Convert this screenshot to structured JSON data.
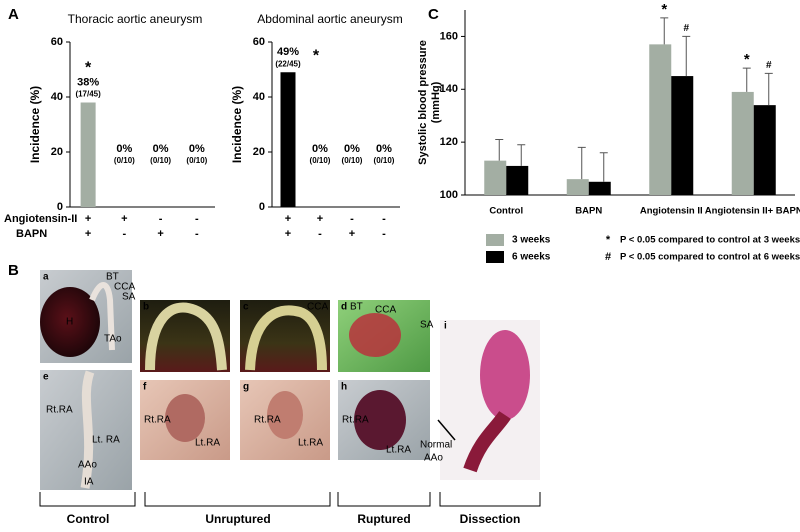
{
  "panel_labels": [
    "A",
    "B",
    "C"
  ],
  "chart_data": [
    {
      "type": "bar",
      "title": "Thoracic aortic aneurysm",
      "ylabel": "Incidence (%)",
      "categories": [
        null,
        null,
        null,
        null
      ],
      "values": [
        38,
        0,
        0,
        0
      ],
      "value_labels": [
        "38%",
        "0%",
        "0%",
        "0%"
      ],
      "counts": [
        "(17/45)",
        "(0/10)",
        "(0/10)",
        "(0/10)"
      ],
      "significance": [
        "*",
        null,
        null,
        null
      ],
      "color": "#a3aea3",
      "ylim": [
        0,
        60
      ],
      "yticks": [
        0,
        20,
        40,
        60
      ]
    },
    {
      "type": "bar",
      "title": "Abdominal aortic aneurysm",
      "ylabel": "Incidence (%)",
      "categories": [
        null,
        null,
        null,
        null
      ],
      "values": [
        49,
        0,
        0,
        0
      ],
      "value_labels": [
        "49%",
        "0%",
        "0%",
        "0%"
      ],
      "counts": [
        "(22/45)",
        "(0/10)",
        "(0/10)",
        "(0/10)"
      ],
      "significance": [
        "*",
        null,
        null,
        null
      ],
      "color": "#000000",
      "ylim": [
        0,
        60
      ],
      "yticks": [
        0,
        20,
        40,
        60
      ]
    },
    {
      "type": "grouped-bar",
      "ylabel": [
        "Systolic blood pressure",
        "(mmHg)"
      ],
      "categories": [
        "Control",
        "BAPN",
        "Angiotensin II",
        "Angiotensin II+ BAPN"
      ],
      "series": [
        {
          "name": "3 weeks",
          "color": "#a3aea3",
          "values": [
            113,
            106,
            157,
            139
          ],
          "errors": [
            8,
            12,
            10,
            9
          ],
          "significance": [
            null,
            null,
            "*",
            "*"
          ]
        },
        {
          "name": "6 weeks",
          "color": "#000000",
          "values": [
            111,
            105,
            145,
            134
          ],
          "errors": [
            8,
            11,
            15,
            12
          ],
          "significance": [
            null,
            null,
            "#",
            "#"
          ]
        }
      ],
      "legend_notes": [
        {
          "symbol": "*",
          "text": "P < 0.05 compared to control at 3 weeks"
        },
        {
          "symbol": "#",
          "text": "P < 0.05 compared to control at 6 weeks"
        }
      ],
      "ylim": [
        100,
        170
      ],
      "yticks": [
        100,
        120,
        140,
        160
      ]
    }
  ],
  "treatment_table": {
    "rows": [
      {
        "label": "Angiotensin-II",
        "signs": [
          "+",
          "+",
          "-",
          "-"
        ]
      },
      {
        "label": "BAPN",
        "signs": [
          "+",
          "-",
          "+",
          "-"
        ]
      }
    ]
  },
  "panel_b": {
    "photos": [
      {
        "letter": "a",
        "labels": [
          "H",
          "BT",
          "CCA",
          "SA",
          "TAo"
        ]
      },
      {
        "letter": "b",
        "labels": []
      },
      {
        "letter": "c",
        "labels": [
          "CCA"
        ]
      },
      {
        "letter": "d",
        "labels": [
          "BT",
          "CCA",
          "SA"
        ]
      },
      {
        "letter": "e",
        "labels": [
          "Rt.RA",
          "Lt. RA",
          "AAo",
          "IA"
        ]
      },
      {
        "letter": "f",
        "labels": [
          "Rt.RA",
          "Lt.RA"
        ]
      },
      {
        "letter": "g",
        "labels": [
          "Rt.RA",
          "Lt.RA"
        ]
      },
      {
        "letter": "h",
        "labels": [
          "Rt.RA",
          "Lt.RA"
        ]
      },
      {
        "letter": "i",
        "labels": [
          "Normal",
          "AAo"
        ]
      }
    ],
    "groups": [
      "Control",
      "Unruptured",
      "Ruptured",
      "Dissection"
    ]
  }
}
